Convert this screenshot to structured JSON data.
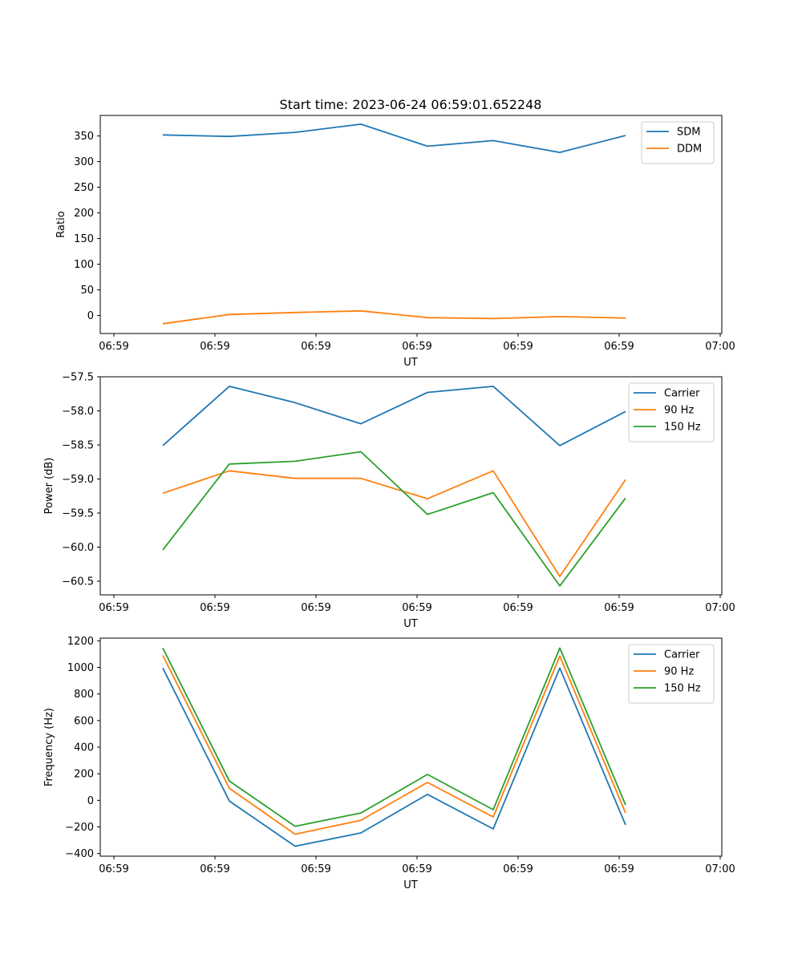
{
  "figure": {
    "title": "Start time: 2023-06-24 06:59:01.652248"
  },
  "colors": {
    "blue": "#1f77b4",
    "orange": "#ff7f0e",
    "green": "#2ca02c",
    "legend_border": "#cccccc"
  },
  "chart_data": [
    {
      "type": "line",
      "title": "Start time: 2023-06-24 06:59:01.652248",
      "xlabel": "UT",
      "ylabel": "Ratio",
      "x_ticks": [
        "06:59",
        "06:59",
        "06:59",
        "06:59",
        "06:59",
        "06:59",
        "07:00"
      ],
      "x_points": 8,
      "ylim": [
        -35,
        390
      ],
      "y_ticks": [
        0,
        50,
        100,
        150,
        200,
        250,
        300,
        350
      ],
      "y_tick_labels": [
        "0",
        "50",
        "100",
        "150",
        "200",
        "250",
        "300",
        "350"
      ],
      "legend_position": "top-right",
      "grid": false,
      "series": [
        {
          "name": "SDM",
          "color": "#1f77b4",
          "values": [
            352,
            349,
            357,
            373,
            330,
            341,
            318,
            351
          ]
        },
        {
          "name": "DDM",
          "color": "#ff7f0e",
          "values": [
            -16,
            2,
            6,
            9,
            -4,
            -6,
            -2,
            -5
          ]
        }
      ]
    },
    {
      "type": "line",
      "xlabel": "UT",
      "ylabel": "Power (dB)",
      "x_ticks": [
        "06:59",
        "06:59",
        "06:59",
        "06:59",
        "06:59",
        "06:59",
        "07:00"
      ],
      "x_points": 8,
      "ylim": [
        -60.7,
        -57.5
      ],
      "y_ticks": [
        -57.5,
        -58.0,
        -58.5,
        -59.0,
        -59.5,
        -60.0,
        -60.5
      ],
      "y_tick_labels": [
        "−57.5",
        "−58.0",
        "−58.5",
        "−59.0",
        "−59.5",
        "−60.0",
        "−60.5"
      ],
      "legend_position": "top-right",
      "grid": false,
      "series": [
        {
          "name": "Carrier",
          "color": "#1f77b4",
          "values": [
            -58.51,
            -57.64,
            -57.88,
            -58.19,
            -57.73,
            -57.64,
            -58.51,
            -58.01
          ]
        },
        {
          "name": "90 Hz",
          "color": "#ff7f0e",
          "values": [
            -59.21,
            -58.88,
            -58.99,
            -58.99,
            -59.29,
            -58.88,
            -60.43,
            -59.01
          ]
        },
        {
          "name": "150 Hz",
          "color": "#2ca02c",
          "values": [
            -60.04,
            -58.78,
            -58.74,
            -58.6,
            -59.52,
            -59.2,
            -60.57,
            -59.28
          ]
        }
      ]
    },
    {
      "type": "line",
      "xlabel": "UT",
      "ylabel": "Frequency (Hz)",
      "x_ticks": [
        "06:59",
        "06:59",
        "06:59",
        "06:59",
        "06:59",
        "06:59",
        "07:00"
      ],
      "x_points": 8,
      "ylim": [
        -420,
        1220
      ],
      "y_ticks": [
        -400,
        -200,
        0,
        200,
        400,
        600,
        800,
        1000,
        1200
      ],
      "y_tick_labels": [
        "−400",
        "−200",
        "0",
        "200",
        "400",
        "600",
        "800",
        "1000",
        "1200"
      ],
      "legend_position": "top-right",
      "grid": false,
      "series": [
        {
          "name": "Carrier",
          "color": "#1f77b4",
          "values": [
            995,
            -5,
            -345,
            -245,
            45,
            -215,
            995,
            -185
          ]
        },
        {
          "name": "90 Hz",
          "color": "#ff7f0e",
          "values": [
            1090,
            90,
            -255,
            -150,
            135,
            -125,
            1085,
            -95
          ]
        },
        {
          "name": "150 Hz",
          "color": "#2ca02c",
          "values": [
            1145,
            145,
            -195,
            -95,
            195,
            -70,
            1145,
            -35
          ]
        }
      ]
    }
  ]
}
